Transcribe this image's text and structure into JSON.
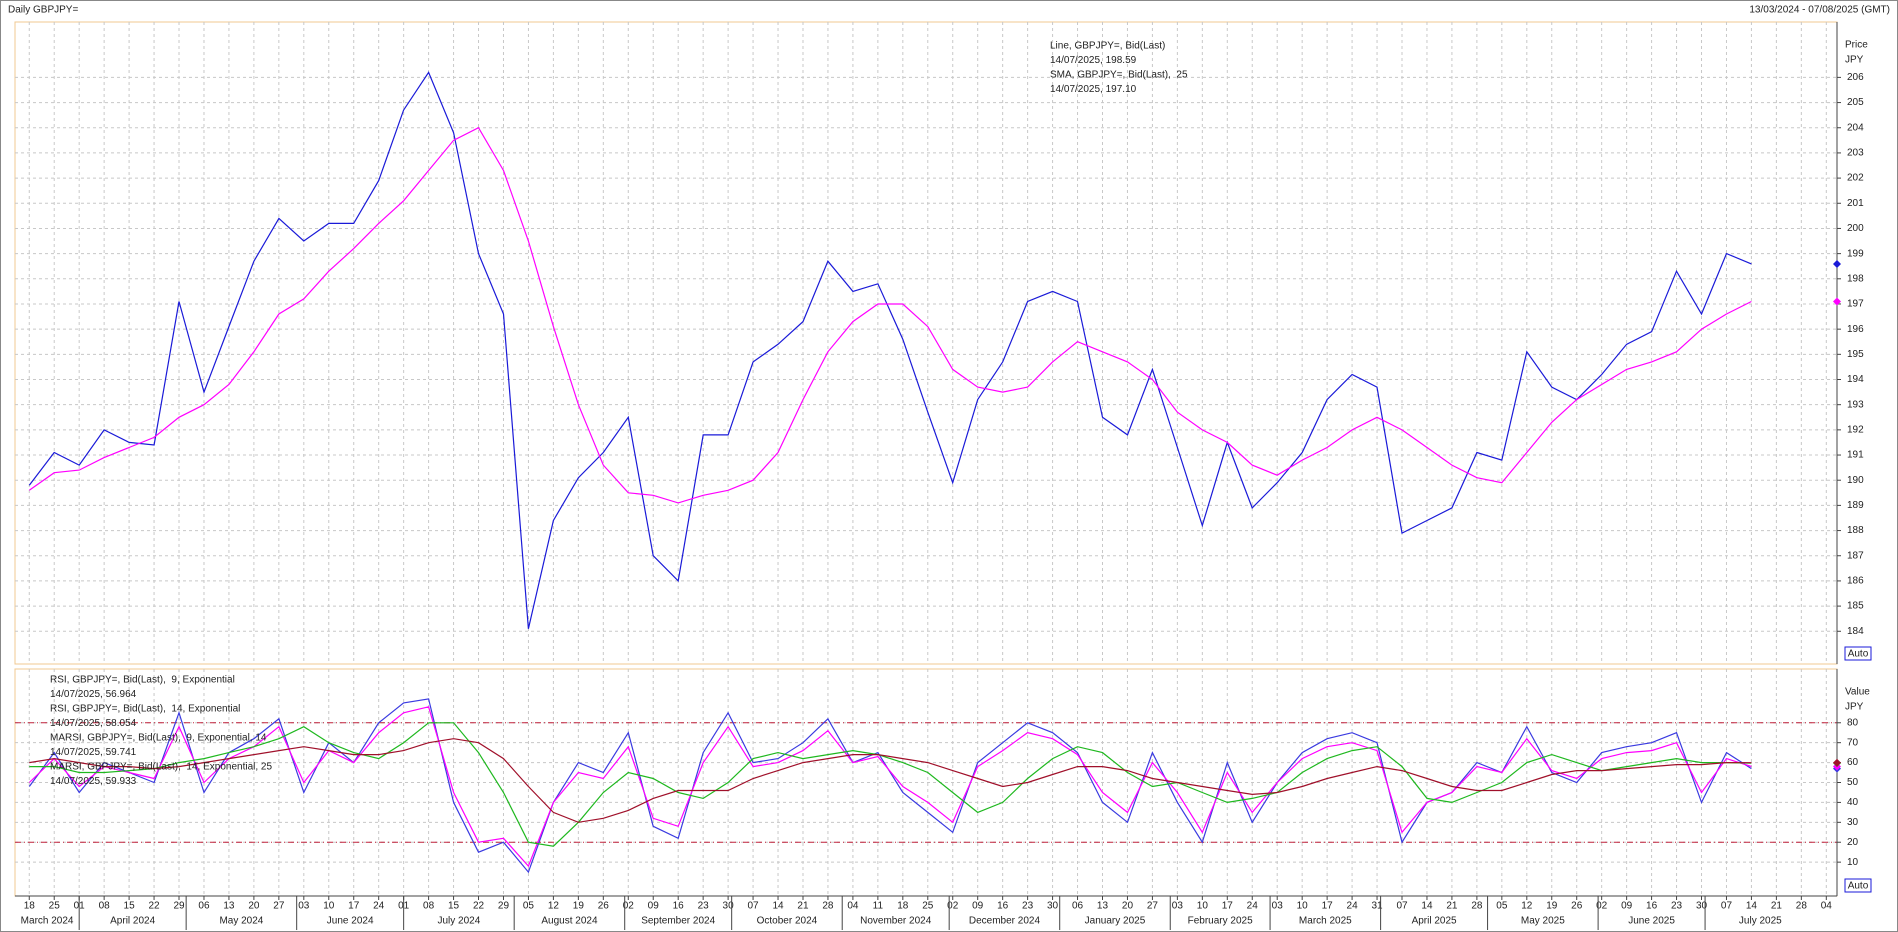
{
  "header": {
    "title": "Daily GBPJPY=",
    "range": "13/03/2024 - 07/08/2025 (GMT)"
  },
  "time_axis": {
    "xlim": [
      "2024-03-14",
      "2025-08-07"
    ],
    "xticks": [
      {
        "value": "2024-03-18",
        "label": "18"
      },
      {
        "value": "2024-03-25",
        "label": "25"
      },
      {
        "value": "2024-04-01",
        "label": "01"
      },
      {
        "value": "2024-04-08",
        "label": "08"
      },
      {
        "value": "2024-04-15",
        "label": "15"
      },
      {
        "value": "2024-04-22",
        "label": "22"
      },
      {
        "value": "2024-04-29",
        "label": "29"
      },
      {
        "value": "2024-05-06",
        "label": "06"
      },
      {
        "value": "2024-05-13",
        "label": "13"
      },
      {
        "value": "2024-05-20",
        "label": "20"
      },
      {
        "value": "2024-05-27",
        "label": "27"
      },
      {
        "value": "2024-06-03",
        "label": "03"
      },
      {
        "value": "2024-06-10",
        "label": "10"
      },
      {
        "value": "2024-06-17",
        "label": "17"
      },
      {
        "value": "2024-06-24",
        "label": "24"
      },
      {
        "value": "2024-07-01",
        "label": "01"
      },
      {
        "value": "2024-07-08",
        "label": "08"
      },
      {
        "value": "2024-07-15",
        "label": "15"
      },
      {
        "value": "2024-07-22",
        "label": "22"
      },
      {
        "value": "2024-07-29",
        "label": "29"
      },
      {
        "value": "2024-08-05",
        "label": "05"
      },
      {
        "value": "2024-08-12",
        "label": "12"
      },
      {
        "value": "2024-08-19",
        "label": "19"
      },
      {
        "value": "2024-08-26",
        "label": "26"
      },
      {
        "value": "2024-09-02",
        "label": "02"
      },
      {
        "value": "2024-09-09",
        "label": "09"
      },
      {
        "value": "2024-09-16",
        "label": "16"
      },
      {
        "value": "2024-09-23",
        "label": "23"
      },
      {
        "value": "2024-09-30",
        "label": "30"
      },
      {
        "value": "2024-10-07",
        "label": "07"
      },
      {
        "value": "2024-10-14",
        "label": "14"
      },
      {
        "value": "2024-10-21",
        "label": "21"
      },
      {
        "value": "2024-10-28",
        "label": "28"
      },
      {
        "value": "2024-11-04",
        "label": "04"
      },
      {
        "value": "2024-11-11",
        "label": "11"
      },
      {
        "value": "2024-11-18",
        "label": "18"
      },
      {
        "value": "2024-11-25",
        "label": "25"
      },
      {
        "value": "2024-12-02",
        "label": "02"
      },
      {
        "value": "2024-12-09",
        "label": "09"
      },
      {
        "value": "2024-12-16",
        "label": "16"
      },
      {
        "value": "2024-12-23",
        "label": "23"
      },
      {
        "value": "2024-12-30",
        "label": "30"
      },
      {
        "value": "2025-01-06",
        "label": "06"
      },
      {
        "value": "2025-01-13",
        "label": "13"
      },
      {
        "value": "2025-01-20",
        "label": "20"
      },
      {
        "value": "2025-01-27",
        "label": "27"
      },
      {
        "value": "2025-02-03",
        "label": "03"
      },
      {
        "value": "2025-02-10",
        "label": "10"
      },
      {
        "value": "2025-02-17",
        "label": "17"
      },
      {
        "value": "2025-02-24",
        "label": "24"
      },
      {
        "value": "2025-03-03",
        "label": "03"
      },
      {
        "value": "2025-03-10",
        "label": "10"
      },
      {
        "value": "2025-03-17",
        "label": "17"
      },
      {
        "value": "2025-03-24",
        "label": "24"
      },
      {
        "value": "2025-03-31",
        "label": "31"
      },
      {
        "value": "2025-04-07",
        "label": "07"
      },
      {
        "value": "2025-04-14",
        "label": "14"
      },
      {
        "value": "2025-04-21",
        "label": "21"
      },
      {
        "value": "2025-04-28",
        "label": "28"
      },
      {
        "value": "2025-05-05",
        "label": "05"
      },
      {
        "value": "2025-05-12",
        "label": "12"
      },
      {
        "value": "2025-05-19",
        "label": "19"
      },
      {
        "value": "2025-05-26",
        "label": "26"
      },
      {
        "value": "2025-06-02",
        "label": "02"
      },
      {
        "value": "2025-06-09",
        "label": "09"
      },
      {
        "value": "2025-06-16",
        "label": "16"
      },
      {
        "value": "2025-06-23",
        "label": "23"
      },
      {
        "value": "2025-06-30",
        "label": "30"
      },
      {
        "value": "2025-07-07",
        "label": "07"
      },
      {
        "value": "2025-07-14",
        "label": "14"
      },
      {
        "value": "2025-07-21",
        "label": "21"
      },
      {
        "value": "2025-07-28",
        "label": "28"
      },
      {
        "value": "2025-08-04",
        "label": "04"
      }
    ],
    "months": [
      {
        "value": "2024-03-01",
        "label": "March 2024"
      },
      {
        "value": "2024-04-01",
        "label": "April 2024"
      },
      {
        "value": "2024-05-01",
        "label": "May 2024"
      },
      {
        "value": "2024-06-01",
        "label": "June 2024"
      },
      {
        "value": "2024-07-01",
        "label": "July 2024"
      },
      {
        "value": "2024-08-01",
        "label": "August 2024"
      },
      {
        "value": "2024-09-01",
        "label": "September 2024"
      },
      {
        "value": "2024-10-01",
        "label": "October 2024"
      },
      {
        "value": "2024-11-01",
        "label": "November 2024"
      },
      {
        "value": "2024-12-01",
        "label": "December 2024"
      },
      {
        "value": "2025-01-01",
        "label": "January 2025"
      },
      {
        "value": "2025-02-01",
        "label": "February 2025"
      },
      {
        "value": "2025-03-01",
        "label": "March 2025"
      },
      {
        "value": "2025-04-01",
        "label": "April 2025"
      },
      {
        "value": "2025-05-01",
        "label": "May 2025"
      },
      {
        "value": "2025-06-01",
        "label": "June 2025"
      },
      {
        "value": "2025-07-01",
        "label": "July 2025"
      }
    ]
  },
  "chart_data": [
    {
      "type": "line",
      "y_label": "Price",
      "y_unit": "JPY",
      "auto_label": "Auto",
      "grid": true,
      "ylim": [
        182.7,
        208.2
      ],
      "yticks": [
        184,
        185,
        186,
        187,
        188,
        189,
        190,
        191,
        192,
        193,
        194,
        195,
        196,
        197,
        198,
        199,
        200,
        201,
        202,
        203,
        204,
        205,
        206
      ],
      "x": [
        "2024-03-18",
        "2024-03-25",
        "2024-04-01",
        "2024-04-08",
        "2024-04-15",
        "2024-04-22",
        "2024-04-29",
        "2024-05-06",
        "2024-05-13",
        "2024-05-20",
        "2024-05-27",
        "2024-06-03",
        "2024-06-10",
        "2024-06-17",
        "2024-06-24",
        "2024-07-01",
        "2024-07-08",
        "2024-07-15",
        "2024-07-22",
        "2024-07-29",
        "2024-08-05",
        "2024-08-12",
        "2024-08-19",
        "2024-08-26",
        "2024-09-02",
        "2024-09-09",
        "2024-09-16",
        "2024-09-23",
        "2024-09-30",
        "2024-10-07",
        "2024-10-14",
        "2024-10-21",
        "2024-10-28",
        "2024-11-04",
        "2024-11-11",
        "2024-11-18",
        "2024-11-25",
        "2024-12-02",
        "2024-12-09",
        "2024-12-16",
        "2024-12-23",
        "2024-12-30",
        "2025-01-06",
        "2025-01-13",
        "2025-01-20",
        "2025-01-27",
        "2025-02-03",
        "2025-02-10",
        "2025-02-17",
        "2025-02-24",
        "2025-03-03",
        "2025-03-10",
        "2025-03-17",
        "2025-03-24",
        "2025-03-31",
        "2025-04-07",
        "2025-04-14",
        "2025-04-21",
        "2025-04-28",
        "2025-05-05",
        "2025-05-12",
        "2025-05-19",
        "2025-05-26",
        "2025-06-02",
        "2025-06-09",
        "2025-06-16",
        "2025-06-23",
        "2025-06-30",
        "2025-07-07",
        "2025-07-14"
      ],
      "series": [
        {
          "name": "Line, GBPJPY=, Bid(Last)",
          "legend_value": "14/07/2025, 198.59",
          "color": "#1a1ad8",
          "values": [
            189.8,
            191.1,
            190.6,
            192.0,
            191.5,
            191.4,
            197.1,
            193.5,
            196.1,
            198.7,
            200.4,
            199.5,
            200.2,
            200.2,
            201.9,
            204.7,
            206.2,
            203.8,
            199.0,
            196.6,
            184.1,
            188.4,
            190.1,
            191.1,
            192.5,
            187.0,
            186.0,
            191.8,
            191.8,
            194.7,
            195.4,
            196.3,
            198.7,
            197.5,
            197.8,
            195.6,
            192.7,
            189.9,
            193.2,
            194.7,
            197.1,
            197.5,
            197.1,
            192.5,
            191.8,
            194.4,
            191.3,
            188.2,
            191.5,
            188.9,
            189.9,
            191.1,
            193.2,
            194.2,
            193.7,
            187.9,
            188.4,
            188.9,
            191.1,
            190.8,
            195.1,
            193.7,
            193.2,
            194.2,
            195.4,
            195.9,
            198.3,
            196.6,
            199.0,
            198.59
          ]
        },
        {
          "name": "SMA, GBPJPY=, Bid(Last),  25",
          "legend_value": "14/07/2025, 197.10",
          "color": "#ff00ff",
          "values": [
            189.6,
            190.3,
            190.4,
            190.9,
            191.3,
            191.7,
            192.5,
            193.0,
            193.8,
            195.1,
            196.6,
            197.2,
            198.3,
            199.2,
            200.2,
            201.1,
            202.3,
            203.5,
            204.0,
            202.3,
            199.5,
            196.1,
            193.0,
            190.6,
            189.5,
            189.4,
            189.1,
            189.4,
            189.6,
            190.0,
            191.1,
            193.2,
            195.1,
            196.3,
            197.0,
            197.0,
            196.1,
            194.4,
            193.7,
            193.5,
            193.7,
            194.7,
            195.5,
            195.1,
            194.7,
            194.0,
            192.7,
            192.0,
            191.5,
            190.6,
            190.2,
            190.8,
            191.3,
            192.0,
            192.5,
            192.0,
            191.3,
            190.6,
            190.1,
            189.9,
            191.1,
            192.3,
            193.2,
            193.8,
            194.4,
            194.7,
            195.1,
            196.0,
            196.6,
            197.1
          ]
        }
      ]
    },
    {
      "type": "line",
      "y_label": "Value",
      "y_unit": "JPY",
      "auto_label": "Auto",
      "grid": true,
      "ylim": [
        -7,
        107
      ],
      "yticks": [
        10,
        20,
        30,
        40,
        50,
        60,
        70,
        80
      ],
      "reference_lines": [
        20,
        80
      ],
      "x": [
        "2024-03-18",
        "2024-03-25",
        "2024-04-01",
        "2024-04-08",
        "2024-04-15",
        "2024-04-22",
        "2024-04-29",
        "2024-05-06",
        "2024-05-13",
        "2024-05-20",
        "2024-05-27",
        "2024-06-03",
        "2024-06-10",
        "2024-06-17",
        "2024-06-24",
        "2024-07-01",
        "2024-07-08",
        "2024-07-15",
        "2024-07-22",
        "2024-07-29",
        "2024-08-05",
        "2024-08-12",
        "2024-08-19",
        "2024-08-26",
        "2024-09-02",
        "2024-09-09",
        "2024-09-16",
        "2024-09-23",
        "2024-09-30",
        "2024-10-07",
        "2024-10-14",
        "2024-10-21",
        "2024-10-28",
        "2024-11-04",
        "2024-11-11",
        "2024-11-18",
        "2024-11-25",
        "2024-12-02",
        "2024-12-09",
        "2024-12-16",
        "2024-12-23",
        "2024-12-30",
        "2025-01-06",
        "2025-01-13",
        "2025-01-20",
        "2025-01-27",
        "2025-02-03",
        "2025-02-10",
        "2025-02-17",
        "2025-02-24",
        "2025-03-03",
        "2025-03-10",
        "2025-03-17",
        "2025-03-24",
        "2025-03-31",
        "2025-04-07",
        "2025-04-14",
        "2025-04-21",
        "2025-04-28",
        "2025-05-05",
        "2025-05-12",
        "2025-05-19",
        "2025-05-26",
        "2025-06-02",
        "2025-06-09",
        "2025-06-16",
        "2025-06-23",
        "2025-06-30",
        "2025-07-07",
        "2025-07-14"
      ],
      "series": [
        {
          "name": "RSI, GBPJPY=, Bid(Last),  9, Exponential",
          "legend_value": "14/07/2025, 56.964",
          "color": "#3a3ae0",
          "values": [
            48,
            65,
            45,
            60,
            55,
            50,
            85,
            45,
            65,
            72,
            82,
            45,
            70,
            60,
            80,
            90,
            92,
            40,
            15,
            20,
            5,
            40,
            60,
            55,
            75,
            28,
            22,
            65,
            85,
            60,
            62,
            70,
            82,
            60,
            65,
            45,
            35,
            25,
            60,
            70,
            80,
            75,
            65,
            40,
            30,
            65,
            40,
            20,
            60,
            30,
            50,
            65,
            72,
            75,
            70,
            20,
            40,
            45,
            60,
            55,
            78,
            55,
            50,
            65,
            68,
            70,
            75,
            40,
            65,
            56.964
          ]
        },
        {
          "name": "RSI, GBPJPY=, Bid(Last),  14, Exponential",
          "legend_value": "14/07/2025, 58.054",
          "color": "#ff00ff",
          "values": [
            50,
            62,
            48,
            58,
            55,
            52,
            78,
            50,
            62,
            68,
            78,
            50,
            66,
            60,
            75,
            85,
            88,
            45,
            20,
            22,
            8,
            40,
            55,
            52,
            68,
            32,
            28,
            60,
            78,
            58,
            60,
            66,
            76,
            60,
            63,
            48,
            40,
            30,
            58,
            66,
            75,
            72,
            64,
            45,
            35,
            60,
            45,
            25,
            55,
            35,
            50,
            62,
            68,
            70,
            66,
            25,
            40,
            45,
            58,
            55,
            72,
            56,
            52,
            62,
            65,
            66,
            70,
            45,
            62,
            58.054
          ]
        },
        {
          "name": "MARSI, GBPJPY=, Bid(Last),  9, Exponential, 14",
          "legend_value": "14/07/2025, 59.741",
          "color": "#1fb81f",
          "values": [
            58,
            58,
            55,
            55,
            56,
            57,
            60,
            62,
            65,
            68,
            72,
            78,
            70,
            65,
            62,
            70,
            80,
            80,
            65,
            45,
            20,
            18,
            30,
            45,
            55,
            52,
            45,
            42,
            50,
            62,
            65,
            62,
            64,
            66,
            64,
            60,
            55,
            45,
            35,
            40,
            52,
            62,
            68,
            65,
            55,
            48,
            50,
            45,
            40,
            42,
            45,
            55,
            62,
            66,
            68,
            58,
            42,
            40,
            45,
            50,
            60,
            64,
            60,
            56,
            58,
            60,
            62,
            60,
            60,
            59.741
          ]
        },
        {
          "name": "MARSI, GBPJPY=, Bid(Last),  14, Exponential, 25",
          "legend_value": "14/07/2025, 59.933",
          "color": "#a0102a",
          "values": [
            60,
            62,
            60,
            58,
            58,
            57,
            58,
            60,
            62,
            64,
            66,
            68,
            66,
            64,
            64,
            66,
            70,
            72,
            70,
            62,
            48,
            35,
            30,
            32,
            36,
            42,
            46,
            46,
            46,
            52,
            56,
            60,
            62,
            64,
            64,
            62,
            60,
            56,
            52,
            48,
            50,
            54,
            58,
            58,
            56,
            52,
            50,
            48,
            46,
            44,
            45,
            48,
            52,
            55,
            58,
            56,
            52,
            48,
            46,
            46,
            50,
            54,
            56,
            56,
            57,
            58,
            59,
            59,
            60,
            59.933
          ]
        }
      ]
    }
  ]
}
